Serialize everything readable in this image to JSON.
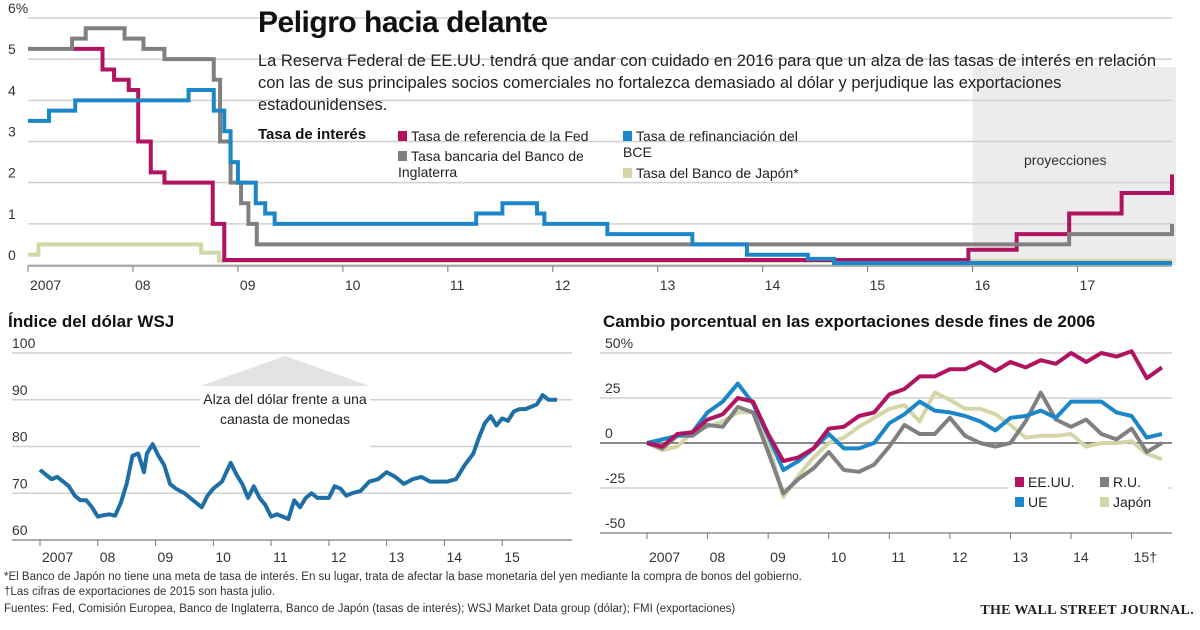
{
  "header": {
    "title": "Peligro hacia delante",
    "subtitle": "La Reserva Federal de EE.UU. tendrá que andar con cuidado en 2016 para que un alza de las tasas de interés en relación con las de sus principales socios comerciales no fortalezca demasiado al dólar y perjudique las exportaciones estadounidenses."
  },
  "colors": {
    "fed": "#b0135f",
    "ecb": "#1b86c8",
    "boe": "#808080",
    "boj": "#d4d6a8",
    "dollar": "#1e6fa6",
    "grid": "#d0d0d0",
    "projection_bg": "#ececec"
  },
  "footer": {
    "note1": "*El Banco de Japón no tiene una meta de tasa de interés. En su lugar, trata de afectar la base monetaria del yen mediante la compra de bonos del gobierno.",
    "note2": "†Las cifras de exportaciones de 2015 son hasta julio.",
    "sources": "Fuentes: Fed, Comisión Europea, Banco de Inglaterra, Banco de Japón (tasas de interés); WSJ Market Data group (dólar); FMI (exportaciones)",
    "brand": "THE WALL STREET JOURNAL."
  },
  "chart_data": [
    {
      "id": "interest-rates",
      "type": "line",
      "step": true,
      "title": "Tasa de interés",
      "ylabel": "%",
      "ylim": [
        0,
        6
      ],
      "yticks": [
        0,
        1,
        2,
        3,
        4,
        5,
        6
      ],
      "ytick_labels": [
        "0",
        "1",
        "2",
        "3",
        "4",
        "5",
        "6%"
      ],
      "xlim": [
        2007.0,
        2017.9
      ],
      "xticks": [
        2007,
        2008,
        2009,
        2010,
        2011,
        2012,
        2013,
        2014,
        2015,
        2016,
        2017
      ],
      "xtick_labels": [
        "2007",
        "08",
        "09",
        "10",
        "11",
        "12",
        "13",
        "14",
        "15",
        "16",
        "17"
      ],
      "annotation": "proyecciones",
      "projection_range": [
        2016.0,
        2017.9
      ],
      "legend": [
        {
          "key": "fed",
          "label": "Tasa de referencia de la Fed"
        },
        {
          "key": "ecb",
          "label": "Tasa de refinanciación del BCE"
        },
        {
          "key": "boe",
          "label": "Tasa bancaria del Banco de Inglaterra"
        },
        {
          "key": "boj",
          "label": "Tasa del Banco de Japón*"
        }
      ],
      "series": [
        {
          "name": "Tasa de referencia de la Fed",
          "key": "fed",
          "steps": [
            [
              2007.42,
              5.25
            ],
            [
              2007.71,
              4.75
            ],
            [
              2007.82,
              4.5
            ],
            [
              2007.96,
              4.25
            ],
            [
              2008.05,
              3.0
            ],
            [
              2008.17,
              2.25
            ],
            [
              2008.3,
              2.0
            ],
            [
              2008.76,
              1.0
            ],
            [
              2008.87,
              0.12
            ],
            [
              2015.96,
              0.37
            ],
            [
              2016.42,
              0.75
            ],
            [
              2016.92,
              1.25
            ],
            [
              2017.42,
              1.75
            ],
            [
              2017.9,
              2.2
            ]
          ]
        },
        {
          "name": "Tasa de refinanciación del BCE",
          "key": "ecb",
          "steps": [
            [
              2007.0,
              3.5
            ],
            [
              2007.2,
              3.75
            ],
            [
              2007.45,
              4.0
            ],
            [
              2008.53,
              4.25
            ],
            [
              2008.77,
              3.75
            ],
            [
              2008.87,
              3.25
            ],
            [
              2008.93,
              2.5
            ],
            [
              2009.0,
              2.0
            ],
            [
              2009.17,
              1.5
            ],
            [
              2009.26,
              1.25
            ],
            [
              2009.35,
              1.0
            ],
            [
              2011.27,
              1.25
            ],
            [
              2011.52,
              1.5
            ],
            [
              2011.85,
              1.25
            ],
            [
              2011.92,
              1.0
            ],
            [
              2012.52,
              0.75
            ],
            [
              2013.33,
              0.5
            ],
            [
              2013.85,
              0.25
            ],
            [
              2014.43,
              0.15
            ],
            [
              2014.68,
              0.05
            ],
            [
              2017.9,
              0.05
            ]
          ]
        },
        {
          "name": "Tasa bancaria del Banco de Inglaterra",
          "key": "boe",
          "steps": [
            [
              2007.0,
              5.25
            ],
            [
              2007.05,
              5.25
            ],
            [
              2007.42,
              5.5
            ],
            [
              2007.55,
              5.75
            ],
            [
              2007.92,
              5.5
            ],
            [
              2008.1,
              5.25
            ],
            [
              2008.3,
              5.0
            ],
            [
              2008.77,
              4.5
            ],
            [
              2008.83,
              3.0
            ],
            [
              2008.93,
              2.0
            ],
            [
              2009.03,
              1.5
            ],
            [
              2009.1,
              1.0
            ],
            [
              2009.18,
              0.5
            ],
            [
              2016.92,
              0.75
            ],
            [
              2017.9,
              1.0
            ]
          ]
        },
        {
          "name": "Tasa del Banco de Japón",
          "key": "boj",
          "steps": [
            [
              2007.0,
              0.25
            ],
            [
              2007.1,
              0.5
            ],
            [
              2008.5,
              0.5
            ],
            [
              2008.65,
              0.3
            ],
            [
              2008.82,
              0.1
            ],
            [
              2017.9,
              0.1
            ]
          ]
        }
      ]
    },
    {
      "id": "dollar-index",
      "type": "line",
      "title": "Índice del dólar WSJ",
      "ylim": [
        60,
        100
      ],
      "yticks": [
        60,
        70,
        80,
        90,
        100
      ],
      "ytick_labels": [
        "60",
        "70",
        "80",
        "90",
        "100"
      ],
      "xlim": [
        2007.0,
        2016.0
      ],
      "xticks": [
        2007,
        2008,
        2009,
        2010,
        2011,
        2012,
        2013,
        2014,
        2015
      ],
      "xtick_labels": [
        "2007",
        "08",
        "09",
        "10",
        "11",
        "12",
        "13",
        "14",
        "15"
      ],
      "annotation": "Alza del dólar frente a una canasta de monedas",
      "series": [
        {
          "name": "Índice del dólar WSJ",
          "key": "dollar",
          "x": [
            2007.0,
            2007.1,
            2007.2,
            2007.3,
            2007.4,
            2007.5,
            2007.6,
            2007.7,
            2007.8,
            2007.9,
            2008.0,
            2008.1,
            2008.2,
            2008.3,
            2008.4,
            2008.5,
            2008.6,
            2008.7,
            2008.8,
            2008.85,
            2008.95,
            2009.05,
            2009.15,
            2009.25,
            2009.35,
            2009.5,
            2009.65,
            2009.8,
            2009.9,
            2010.0,
            2010.15,
            2010.3,
            2010.4,
            2010.5,
            2010.6,
            2010.7,
            2010.8,
            2010.9,
            2011.0,
            2011.1,
            2011.2,
            2011.3,
            2011.4,
            2011.5,
            2011.6,
            2011.7,
            2011.8,
            2011.9,
            2012.0,
            2012.1,
            2012.2,
            2012.3,
            2012.4,
            2012.55,
            2012.7,
            2012.85,
            2013.0,
            2013.15,
            2013.3,
            2013.45,
            2013.6,
            2013.75,
            2013.9,
            2014.05,
            2014.2,
            2014.35,
            2014.5,
            2014.6,
            2014.7,
            2014.8,
            2014.9,
            2015.0,
            2015.1,
            2015.2,
            2015.3,
            2015.4,
            2015.5,
            2015.6,
            2015.7,
            2015.8,
            2015.9,
            2015.95
          ],
          "y": [
            75.0,
            74.0,
            73.0,
            73.5,
            72.5,
            71.5,
            69.5,
            68.5,
            68.5,
            67.0,
            65.0,
            65.3,
            65.5,
            65.2,
            68.0,
            72.0,
            78.0,
            78.5,
            74.5,
            78.5,
            80.5,
            78.0,
            76.0,
            72.0,
            71.0,
            70.0,
            68.5,
            67.0,
            69.5,
            71.0,
            72.5,
            76.5,
            74.0,
            72.0,
            69.0,
            71.5,
            69.0,
            67.5,
            65.0,
            65.5,
            65.0,
            64.5,
            68.5,
            67.0,
            69.0,
            70.0,
            69.0,
            69.0,
            69.0,
            71.5,
            71.0,
            69.5,
            70.0,
            70.5,
            72.5,
            73.0,
            74.5,
            73.5,
            72.0,
            73.0,
            73.5,
            72.5,
            72.5,
            72.5,
            73.0,
            76.0,
            78.5,
            82.0,
            85.0,
            86.5,
            84.5,
            86.0,
            85.5,
            87.5,
            88.0,
            88.0,
            88.5,
            89.0,
            91.0,
            90.0,
            90.0,
            90.0
          ]
        }
      ]
    },
    {
      "id": "exports-change",
      "type": "line",
      "title": "Cambio porcentual en las exportaciones desde fines de 2006",
      "ylabel": "%",
      "ylim": [
        -50,
        50
      ],
      "yticks": [
        -50,
        -25,
        0,
        25,
        50
      ],
      "ytick_labels": [
        "-50",
        "-25",
        "0",
        "25",
        "50%"
      ],
      "xlim": [
        2007.0,
        2015.6
      ],
      "xticks": [
        2007,
        2008,
        2009,
        2010,
        2011,
        2012,
        2013,
        2014,
        2015
      ],
      "xtick_labels": [
        "2007",
        "08",
        "09",
        "10",
        "11",
        "12",
        "13",
        "14",
        "15†"
      ],
      "legend": [
        {
          "key": "fed",
          "label": "EE.UU."
        },
        {
          "key": "boe",
          "label": "R.U."
        },
        {
          "key": "ecb",
          "label": "UE"
        },
        {
          "key": "boj",
          "label": "Japón"
        }
      ],
      "x": [
        2007.0,
        2007.25,
        2007.5,
        2007.75,
        2008.0,
        2008.25,
        2008.5,
        2008.75,
        2009.0,
        2009.25,
        2009.5,
        2009.75,
        2010.0,
        2010.25,
        2010.5,
        2010.75,
        2011.0,
        2011.25,
        2011.5,
        2011.75,
        2012.0,
        2012.25,
        2012.5,
        2012.75,
        2013.0,
        2013.25,
        2013.5,
        2013.75,
        2014.0,
        2014.25,
        2014.5,
        2014.75,
        2015.0,
        2015.25,
        2015.5
      ],
      "series": [
        {
          "name": "EE.UU.",
          "key": "fed",
          "values": [
            0,
            -2,
            5,
            6,
            13,
            16,
            25,
            23,
            5,
            -10,
            -8,
            -3,
            8,
            9,
            15,
            17,
            27,
            30,
            37,
            37,
            41,
            41,
            45,
            40,
            45,
            42,
            46,
            44,
            50,
            45,
            50,
            48,
            51,
            36,
            42
          ]
        },
        {
          "name": "UE",
          "key": "ecb",
          "values": [
            0,
            2,
            4,
            6,
            17,
            23,
            33,
            22,
            4,
            -15,
            -10,
            -3,
            5,
            -3,
            -3,
            0,
            11,
            16,
            23,
            18,
            17,
            15,
            12,
            7,
            14,
            15,
            18,
            14,
            23,
            23,
            23,
            17,
            15,
            3,
            5
          ]
        },
        {
          "name": "R.U.",
          "key": "boe",
          "values": [
            0,
            -3,
            4,
            4,
            10,
            9,
            20,
            17,
            -5,
            -28,
            -20,
            -14,
            -5,
            -15,
            -16,
            -12,
            -2,
            10,
            5,
            5,
            14,
            4,
            0,
            -2,
            0,
            12,
            28,
            13,
            9,
            13,
            5,
            2,
            8,
            -5,
            0
          ]
        },
        {
          "name": "Japón",
          "key": "boj",
          "values": [
            0,
            -4,
            -2,
            6,
            9,
            12,
            17,
            17,
            0,
            -30,
            -18,
            -8,
            0,
            3,
            9,
            14,
            19,
            21,
            12,
            28,
            24,
            19,
            19,
            16,
            10,
            3,
            4,
            4,
            5,
            -2,
            0,
            0,
            1,
            -6,
            -9
          ]
        }
      ]
    }
  ]
}
